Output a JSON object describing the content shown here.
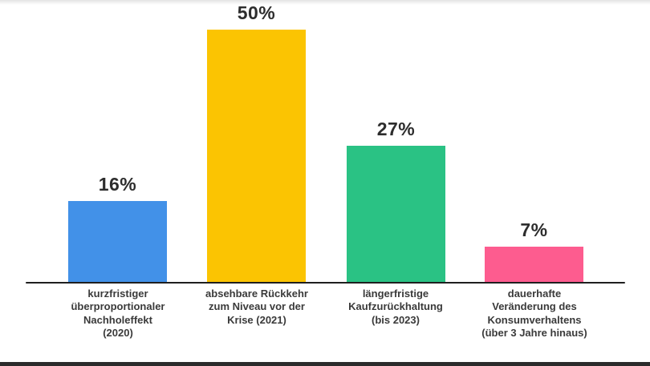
{
  "chart_data": {
    "type": "bar",
    "categories": [
      "kurzfristiger\nüberproportionaler\nNachholeffekt\n(2020)",
      "absehbare Rückkehr\nzum Niveau vor der\nKrise (2021)",
      "längerfristige\nKaufzurückhaltung\n(bis 2023)",
      "dauerhafte\nVeränderung des\nKonsumverhaltens\n(über 3 Jahre hinaus)"
    ],
    "values": [
      16,
      50,
      27,
      7
    ],
    "value_labels": [
      "16%",
      "50%",
      "27%",
      "7%"
    ],
    "colors": [
      "#4291E8",
      "#FBC402",
      "#2AC284",
      "#FD5C8F"
    ],
    "unit": "%",
    "title": "",
    "xlabel": "",
    "ylabel": "",
    "ylim": [
      0,
      53
    ],
    "grid": false,
    "legend": "none",
    "axis_color": "#1f1f1f",
    "background": "#ffffff"
  }
}
